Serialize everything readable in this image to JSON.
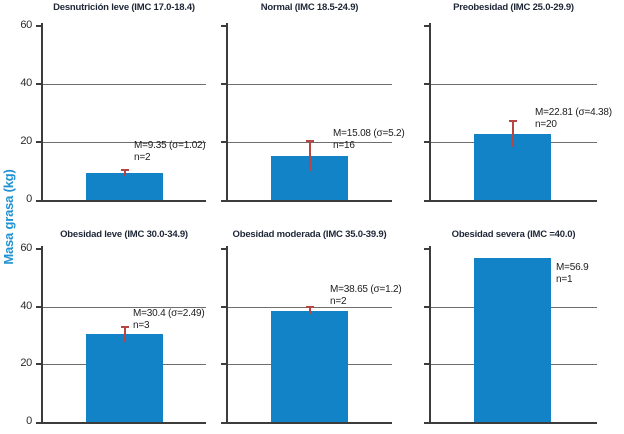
{
  "chart_data": {
    "type": "bar",
    "ylabel": "Masa grasa (kg)",
    "ylim": [
      0,
      60
    ],
    "yticks": [
      0,
      20,
      40,
      60
    ],
    "gridlines_y": [
      20,
      40
    ],
    "legend": "none",
    "colors": {
      "bar": "#1283C6",
      "error_bar": "#B84444",
      "ylabel_text": "#2193D2",
      "axis": "#3C3C3C",
      "gridline": "#6F6F6F",
      "title_text": "#1E2636"
    },
    "panels": [
      {
        "title": "Desnutrición leve (IMC 17.0-18.4)",
        "mean": 9.35,
        "sigma": 1.02,
        "n": 2,
        "mean_label": "M=9.35 (σ=1.02)",
        "n_label": "n=2"
      },
      {
        "title": "Normal (IMC 18.5-24.9)",
        "mean": 15.08,
        "sigma": 5.2,
        "n": 16,
        "mean_label": "M=15.08 (σ=5.2)",
        "n_label": "n=16"
      },
      {
        "title": "Preobesidad (IMC 25.0-29.9)",
        "mean": 22.81,
        "sigma": 4.38,
        "n": 20,
        "mean_label": "M=22.81 (σ=4.38)",
        "n_label": "n=20"
      },
      {
        "title": "Obesidad leve (IMC 30.0-34.9)",
        "mean": 30.4,
        "sigma": 2.49,
        "n": 3,
        "mean_label": "M=30.4 (σ=2.49)",
        "n_label": "n=3"
      },
      {
        "title": "Obesidad moderada (IMC 35.0-39.9)",
        "mean": 38.65,
        "sigma": 1.2,
        "n": 2,
        "mean_label": "M=38.65 (σ=1.2)",
        "n_label": "n=2"
      },
      {
        "title": "Obesidad severa (IMC =40.0)",
        "mean": 56.9,
        "sigma": null,
        "n": 1,
        "mean_label": "M=56.9",
        "n_label": "n=1"
      }
    ]
  }
}
